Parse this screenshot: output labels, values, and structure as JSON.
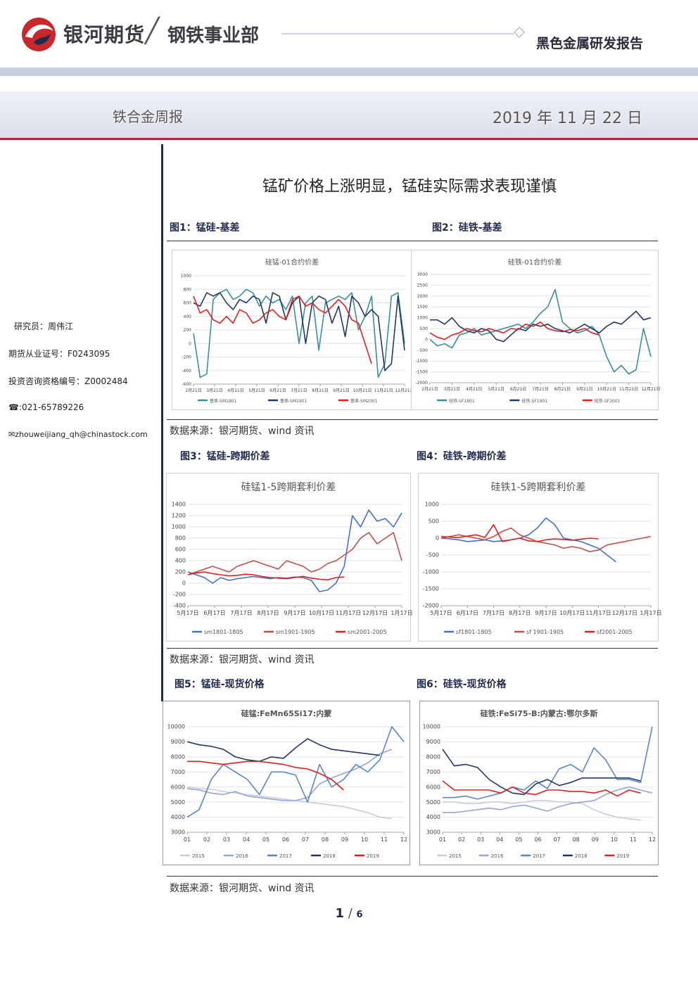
{
  "header": {
    "brand": "银河期货",
    "division": "钢铁事业部",
    "report_type": "黑色金属研发报告",
    "publication": "铁合金周报",
    "date": "2019 年 11 月 22 日",
    "colors": {
      "brand_red": "#c8282b",
      "brand_navy": "#1f2a4d"
    }
  },
  "sidebar": {
    "researcher": "研究员：周伟江",
    "license": "期货从业证号：F0243095",
    "consult": "投资咨询资格编号：Z0002484",
    "phone": "☎:021-65789226",
    "email": "✉zhouweijiang_qh@chinastock.com"
  },
  "headline": "锰矿价格上涨明显，锰硅实际需求表现谨慎",
  "figures": {
    "fig1_title": "图1：锰硅-基差",
    "fig2_title": "图2：硅铁-基差",
    "fig3_title": "图3：锰硅-跨期价差",
    "fig4_title": "图4：硅铁-跨期价差",
    "fig5_title": "图5：锰硅-现货价格",
    "fig6_title": "图6：硅铁-现货价格"
  },
  "sources": [
    "数据来源：银河期货、wind 资讯",
    "数据来源：银河期货、wind 资讯",
    "数据来源：银河期货、wind 资讯"
  ],
  "page": {
    "current": "1",
    "total": "6"
  },
  "chart_data": [
    {
      "id": "c1",
      "type": "line",
      "title": "硅锰-01合约价差",
      "ylim": [
        -600,
        1000
      ],
      "yticks": [
        1000,
        800,
        600,
        400,
        200,
        0,
        -200,
        -400,
        -600
      ],
      "xlabels": [
        "2月21日",
        "3月21日",
        "4月21日",
        "5月21日",
        "6月21日",
        "7月21日",
        "8月21日",
        "9月21日",
        "10月21日",
        "11月21日",
        "12月21日"
      ],
      "series": [
        {
          "name": "基差-SM1801",
          "color": "#3a8f9a",
          "values": [
            150,
            -500,
            -450,
            650,
            750,
            800,
            650,
            700,
            800,
            750,
            550,
            700,
            600,
            650,
            500,
            700,
            0,
            600,
            700,
            -100,
            600,
            650,
            700,
            650,
            750,
            200,
            400,
            700,
            -500,
            -300,
            700,
            750,
            0
          ]
        },
        {
          "name": "基差-SM1901",
          "color": "#1f3864",
          "values": [
            600,
            550,
            750,
            700,
            750,
            600,
            500,
            650,
            600,
            700,
            650,
            300,
            750,
            700,
            350,
            600,
            700,
            0,
            600,
            700,
            650,
            300,
            550,
            100,
            700,
            600,
            400,
            500,
            400,
            -400,
            -300,
            700,
            -100
          ]
        },
        {
          "name": "基差-SM2001",
          "color": "#e02020",
          "values": [
            700,
            450,
            500,
            350,
            300,
            400,
            300,
            500,
            450,
            300,
            350,
            450,
            500,
            400,
            350,
            650,
            700,
            550,
            600,
            500,
            450,
            550,
            650,
            550,
            350,
            300,
            0,
            -300
          ]
        }
      ]
    },
    {
      "id": "c2",
      "type": "line",
      "title": "硅铁-01合约价差",
      "ylim": [
        -2000,
        3000
      ],
      "yticks": [
        3000,
        2500,
        2000,
        1500,
        1000,
        500,
        0,
        -500,
        -1000,
        -1500,
        -2000
      ],
      "xlabels": [
        "2月21日",
        "3月21日",
        "4月21日",
        "5月21日",
        "6月21日",
        "7月21日",
        "8月21日",
        "9月21日",
        "10月21日",
        "11月21日",
        "12月21日"
      ],
      "series": [
        {
          "name": "硅铁-SF1801",
          "color": "#3a8f9a",
          "values": [
            0,
            -300,
            -200,
            -400,
            200,
            300,
            500,
            200,
            300,
            400,
            500,
            600,
            700,
            500,
            800,
            1200,
            1500,
            2300,
            800,
            500,
            300,
            400,
            600,
            200,
            -800,
            -1500,
            -1200,
            -1600,
            -1400,
            500,
            -800
          ]
        },
        {
          "name": "硅铁-SF1901",
          "color": "#1f3864",
          "values": [
            900,
            900,
            700,
            1000,
            600,
            400,
            300,
            500,
            400,
            0,
            -100,
            200,
            500,
            400,
            700,
            600,
            700,
            500,
            400,
            300,
            500,
            700,
            500,
            300,
            600,
            800,
            700,
            1000,
            1300,
            900,
            1000
          ]
        },
        {
          "name": "硅铁-SF2001",
          "color": "#e02020",
          "values": [
            300,
            100,
            0,
            200,
            300,
            500,
            400,
            350,
            500,
            400,
            300,
            500,
            450,
            700,
            600,
            800,
            500,
            400,
            350,
            450,
            400,
            500,
            300,
            200
          ]
        }
      ]
    },
    {
      "id": "c3",
      "type": "line",
      "title": "硅锰1-5跨期套利价差",
      "ylim": [
        -400,
        1400
      ],
      "yticks": [
        1400,
        1200,
        1000,
        800,
        600,
        400,
        200,
        0,
        -200,
        -400
      ],
      "xlabels": [
        "5月17日",
        "6月17日",
        "7月17日",
        "8月17日",
        "9月17日",
        "10月17日",
        "11月17日",
        "12月17日",
        "1月17日"
      ],
      "series": [
        {
          "name": "sm1801-1805",
          "color": "#4472c4",
          "values": [
            200,
            150,
            100,
            0,
            100,
            50,
            80,
            100,
            120,
            100,
            80,
            100,
            90,
            110,
            100,
            50,
            -150,
            -120,
            0,
            300,
            1200,
            1000,
            1300,
            1100,
            1150,
            1000,
            1250
          ]
        },
        {
          "name": "sm1901-1905",
          "color": "#c0504d",
          "values": [
            150,
            200,
            250,
            300,
            250,
            200,
            300,
            350,
            400,
            350,
            300,
            250,
            400,
            350,
            300,
            200,
            250,
            350,
            400,
            500,
            600,
            800,
            900,
            700,
            800,
            900,
            400
          ]
        },
        {
          "name": "sm2001-2005",
          "color": "#e02020",
          "values": [
            150,
            180,
            200,
            170,
            150,
            130,
            140,
            160,
            150,
            120,
            100,
            90,
            80,
            100,
            120,
            90,
            70,
            60,
            100,
            110
          ]
        }
      ]
    },
    {
      "id": "c4",
      "type": "line",
      "title": "硅铁1-5跨期套利价差",
      "ylim": [
        -2000,
        1000
      ],
      "yticks": [
        1000,
        500,
        0,
        -500,
        -1000,
        -1500,
        -2000
      ],
      "xlabels": [
        "5月17日",
        "6月17日",
        "7月17日",
        "8月17日",
        "9月17日",
        "10月17日",
        "11月17日",
        "12月17日",
        "1月17日"
      ],
      "series": [
        {
          "name": "sf1801-1805",
          "color": "#4472c4",
          "values": [
            0,
            -20,
            -50,
            -100,
            -80,
            -50,
            -100,
            -80,
            -50,
            0,
            100,
            300,
            600,
            400,
            0,
            -50,
            -100,
            -200,
            -300,
            -500,
            -700
          ]
        },
        {
          "name": "sf 1901-1905",
          "color": "#c0504d",
          "values": [
            0,
            50,
            100,
            50,
            0,
            -50,
            50,
            200,
            300,
            100,
            0,
            -100,
            -150,
            -200,
            -300,
            -250,
            -300,
            -400,
            -350,
            -200,
            -150,
            -100,
            -50,
            0,
            50
          ]
        },
        {
          "name": "sf2001-2005",
          "color": "#e02020",
          "values": [
            50,
            30,
            20,
            60,
            100,
            20,
            400,
            -100,
            -50,
            0,
            -80,
            -100,
            -50,
            -20,
            -40,
            -60,
            -30,
            0,
            -20
          ]
        }
      ]
    },
    {
      "id": "c5",
      "type": "line",
      "title": "硅锰:FeMn65Si17:内蒙",
      "ylim": [
        3000,
        10000
      ],
      "yticks": [
        10000,
        9000,
        8000,
        7000,
        6000,
        5000,
        4000,
        3000
      ],
      "xlabels": [
        "01",
        "02",
        "03",
        "04",
        "05",
        "06",
        "07",
        "08",
        "09",
        "10",
        "11",
        "12"
      ],
      "series": [
        {
          "name": "2015",
          "color": "#c9cbe0",
          "values": [
            6000,
            5900,
            5850,
            5700,
            5600,
            5500,
            5400,
            5300,
            5200,
            5100,
            5000,
            4900,
            4800,
            4700,
            4500,
            4300,
            4000,
            3900
          ]
        },
        {
          "name": "2016",
          "color": "#93a7cf",
          "values": [
            5900,
            5800,
            5600,
            5500,
            5700,
            5400,
            5300,
            5200,
            5100,
            5100,
            5300,
            6200,
            6600,
            6900,
            7200,
            7600,
            8200,
            8500
          ]
        },
        {
          "name": "2017",
          "color": "#5b86c4",
          "values": [
            4000,
            4500,
            6500,
            7500,
            7000,
            6500,
            5500,
            7000,
            7000,
            6800,
            5000,
            7500,
            6000,
            6500,
            7500,
            7000,
            7800,
            10000,
            9000
          ]
        },
        {
          "name": "2018",
          "color": "#1f3864",
          "values": [
            9000,
            8800,
            8700,
            8500,
            8000,
            7800,
            7700,
            8000,
            7900,
            8600,
            9200,
            8800,
            8500,
            8400,
            8300,
            8200,
            8100
          ]
        },
        {
          "name": "2019",
          "color": "#e02020",
          "values": [
            7700,
            7700,
            7600,
            7500,
            7600,
            7700,
            7700,
            7600,
            7500,
            7300,
            7200,
            6900,
            6500,
            5800
          ]
        }
      ]
    },
    {
      "id": "c6",
      "type": "line",
      "title": "硅铁:FeSi75-B:内蒙古:鄂尔多斯",
      "ylim": [
        3000,
        10000
      ],
      "yticks": [
        10000,
        9000,
        8000,
        7000,
        6000,
        5000,
        4000,
        3000
      ],
      "xlabels": [
        "01",
        "02",
        "03",
        "04",
        "05",
        "06",
        "07",
        "08",
        "09",
        "10",
        "11",
        "12"
      ],
      "series": [
        {
          "name": "2015",
          "color": "#c9cbe0",
          "values": [
            5000,
            5000,
            4900,
            4900,
            5000,
            5000,
            4900,
            5000,
            5100,
            5100,
            5000,
            5000,
            4900,
            4500,
            4200,
            4000,
            3900,
            3800
          ]
        },
        {
          "name": "2016",
          "color": "#93a7cf",
          "values": [
            4300,
            4300,
            4400,
            4500,
            4600,
            4500,
            4700,
            4800,
            4600,
            4400,
            4700,
            4900,
            5000,
            5100,
            5500,
            5800,
            6000,
            5800,
            5600
          ]
        },
        {
          "name": "2017",
          "color": "#5b86c4",
          "values": [
            5300,
            5300,
            5400,
            5200,
            5400,
            5600,
            6000,
            5800,
            6400,
            5900,
            7200,
            7500,
            7000,
            8600,
            7800,
            6500,
            6500,
            6300,
            10000
          ]
        },
        {
          "name": "2018",
          "color": "#1f3864",
          "values": [
            8500,
            7400,
            7500,
            7300,
            6500,
            6000,
            5600,
            5500,
            6200,
            6500,
            6100,
            6300,
            6600,
            6600,
            6600,
            6600,
            6600,
            6400
          ]
        },
        {
          "name": "2019",
          "color": "#e02020",
          "values": [
            6400,
            5800,
            5800,
            5800,
            5800,
            5600,
            6000,
            5600,
            5500,
            5800,
            5800,
            5700,
            5700,
            5600,
            5800,
            5400,
            5800,
            5600
          ]
        }
      ]
    }
  ]
}
